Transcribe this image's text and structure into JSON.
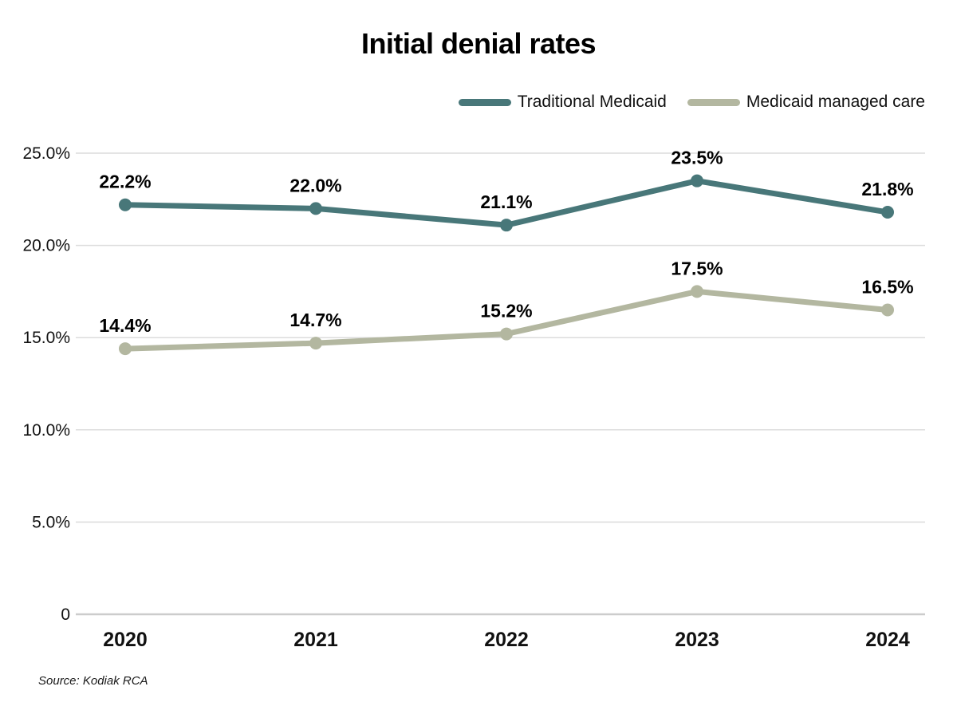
{
  "chart_data": {
    "type": "line",
    "title": "Initial denial rates",
    "categories": [
      "2020",
      "2021",
      "2022",
      "2023",
      "2024"
    ],
    "series": [
      {
        "name": "Traditional Medicaid",
        "color": "#487779",
        "values": [
          22.2,
          22.0,
          21.1,
          23.5,
          21.8
        ],
        "point_labels": [
          "22.2%",
          "22.0%",
          "21.1%",
          "23.5%",
          "21.8%"
        ]
      },
      {
        "name": "Medicaid managed care",
        "color": "#b3b7a0",
        "values": [
          14.4,
          14.7,
          15.2,
          17.5,
          16.5
        ],
        "point_labels": [
          "14.4%",
          "14.7%",
          "15.2%",
          "17.5%",
          "16.5%"
        ]
      }
    ],
    "yticks": [
      {
        "value": 0,
        "label": "0"
      },
      {
        "value": 5,
        "label": "5.0%"
      },
      {
        "value": 10,
        "label": "10.0%"
      },
      {
        "value": 15,
        "label": "15.0%"
      },
      {
        "value": 20,
        "label": "20.0%"
      },
      {
        "value": 25,
        "label": "25.0%"
      }
    ],
    "ylim": [
      0,
      25
    ],
    "xlabel": "",
    "ylabel": "",
    "grid": "horizontal",
    "legend_position": "top-right",
    "colors": {
      "gridline": "#dcdcdc",
      "axis_line": "#cccccc",
      "tick_label": "#111111",
      "data_label": "#000000"
    }
  },
  "source": {
    "text": "Source: Kodiak RCA"
  }
}
